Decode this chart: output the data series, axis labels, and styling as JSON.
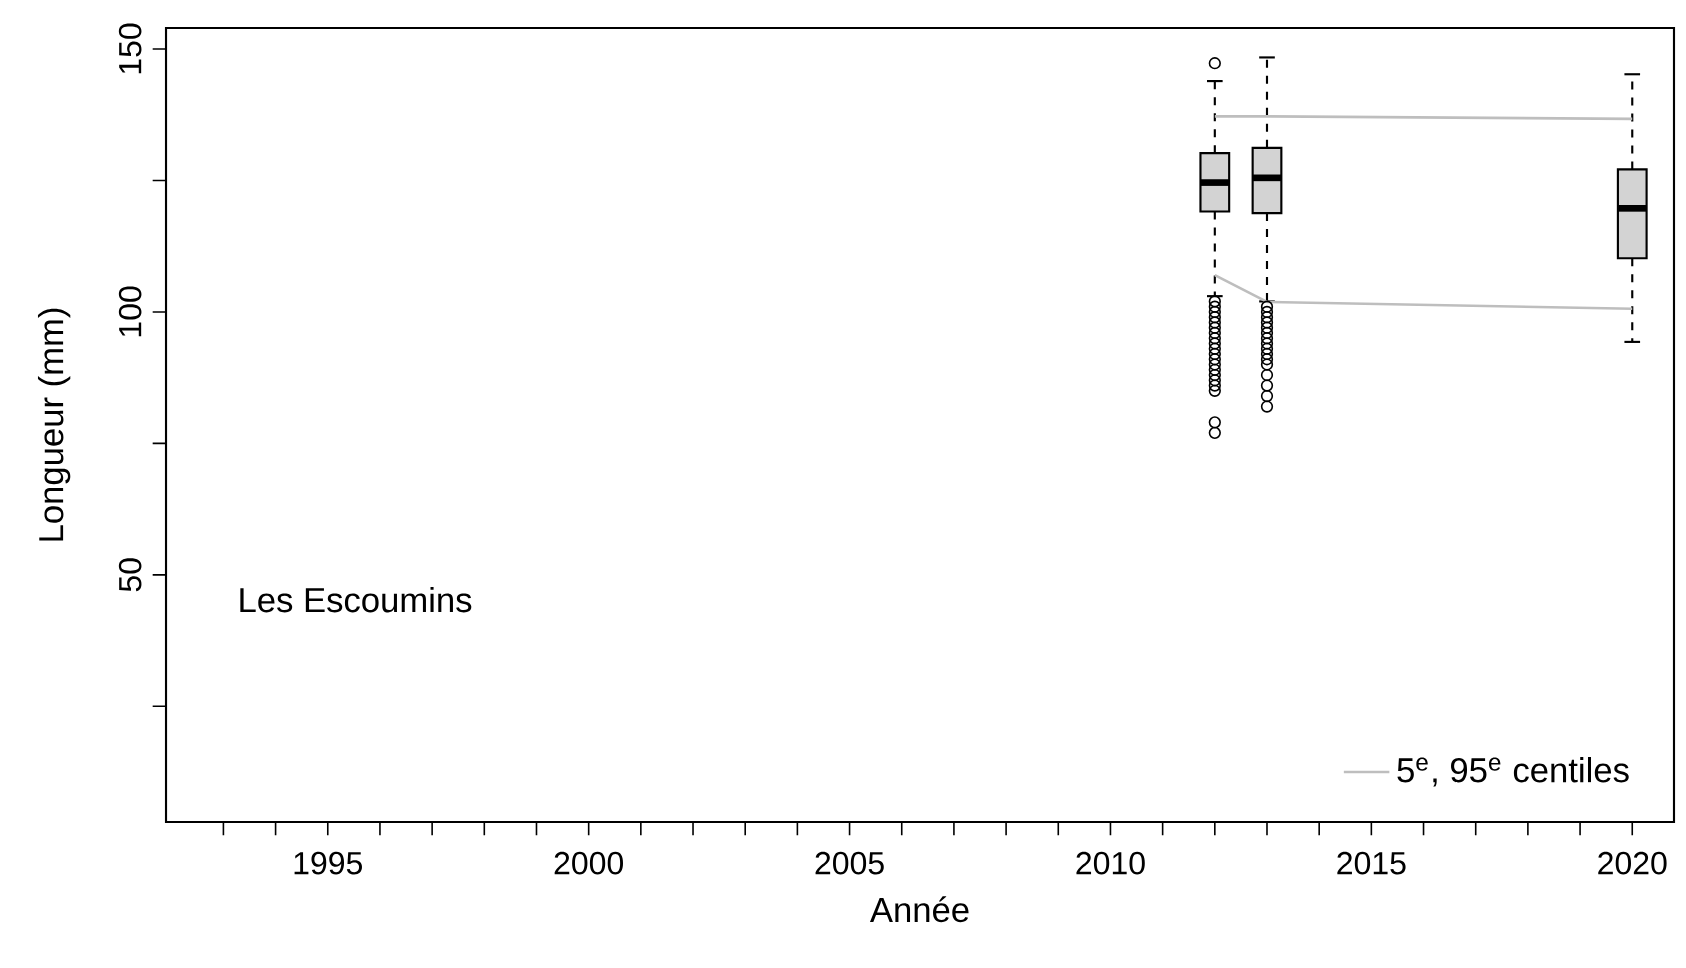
{
  "chart_data": {
    "type": "box",
    "xlabel": "Année",
    "ylabel": "Longueur (mm)",
    "xlim": [
      1991.9,
      2020.8
    ],
    "ylim": [
      3,
      154
    ],
    "xticks": [
      {
        "value": 1993,
        "label": null
      },
      {
        "value": 1994,
        "label": null
      },
      1995,
      {
        "value": 1996,
        "label": null
      },
      {
        "value": 1997,
        "label": null
      },
      {
        "value": 1998,
        "label": null
      },
      {
        "value": 1999,
        "label": null
      },
      2000,
      {
        "value": 2001,
        "label": null
      },
      {
        "value": 2002,
        "label": null
      },
      {
        "value": 2003,
        "label": null
      },
      {
        "value": 2004,
        "label": null
      },
      2005,
      {
        "value": 2006,
        "label": null
      },
      {
        "value": 2007,
        "label": null
      },
      {
        "value": 2008,
        "label": null
      },
      {
        "value": 2009,
        "label": null
      },
      2010,
      {
        "value": 2011,
        "label": null
      },
      {
        "value": 2012,
        "label": null
      },
      {
        "value": 2013,
        "label": null
      },
      {
        "value": 2014,
        "label": null
      },
      2015,
      {
        "value": 2016,
        "label": null
      },
      {
        "value": 2017,
        "label": null
      },
      {
        "value": 2018,
        "label": null
      },
      {
        "value": 2019,
        "label": null
      },
      2020
    ],
    "yticks": [
      {
        "value": 25,
        "label": null
      },
      50,
      {
        "value": 75,
        "label": null
      },
      100,
      {
        "value": 125,
        "label": null
      },
      150
    ],
    "legend": "bottom right",
    "grid": false,
    "annotations": [
      "Les Escoumins"
    ],
    "series": [
      {
        "color": "#d3d3d3",
        "x": [
          2012,
          2013,
          2020
        ],
        "boxes": [
          {
            "low": 103,
            "q1": 119.1,
            "median": 124.6,
            "q3": 130.2,
            "high": 143.9,
            "outliers": [
              147.3,
              102,
              101,
              100,
              99,
              98,
              97,
              96,
              95,
              94,
              93,
              92,
              91,
              90,
              89,
              88,
              87,
              86,
              85,
              79,
              77
            ]
          },
          {
            "low": 102,
            "q1": 118.8,
            "median": 125.5,
            "q3": 131.2,
            "high": 148.4,
            "outliers": [
              101,
              100,
              99,
              98,
              97,
              96,
              95,
              94,
              93,
              92,
              91,
              90,
              88,
              86,
              84,
              82
            ]
          },
          {
            "low": 94.3,
            "q1": 110.2,
            "median": 119.7,
            "q3": 127.1,
            "high": 145.2
          }
        ]
      },
      {
        "type": "line",
        "name": "5$^{e}$, 95$^{e}$ centiles",
        "color": "#bebebe",
        "x": [
          2012,
          2013,
          2020
        ],
        "values": [
          137.2,
          137.2,
          136.7
        ]
      },
      {
        "type": "line",
        "color": "#bebebe",
        "x": [
          2012,
          2013,
          2020
        ],
        "values": [
          107,
          101.9,
          100.6
        ]
      }
    ]
  }
}
